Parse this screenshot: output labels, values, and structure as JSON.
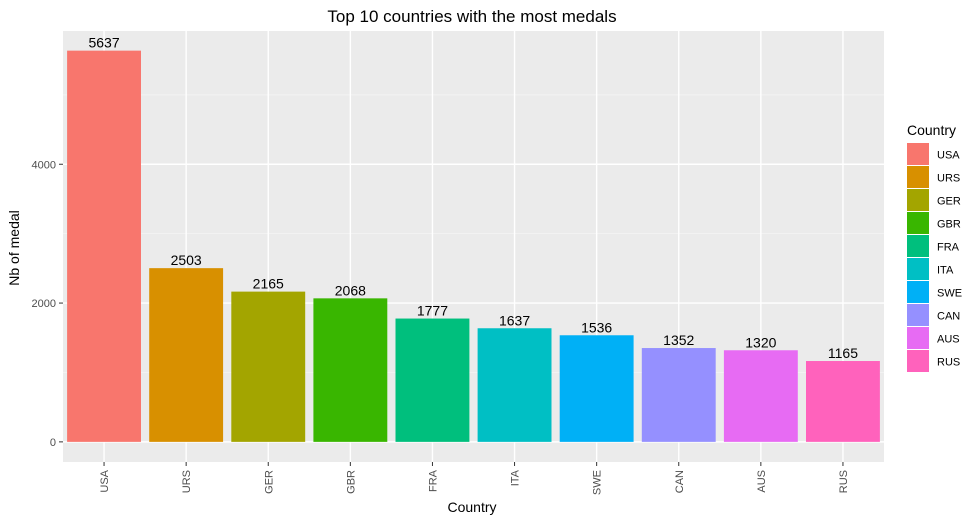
{
  "chart_data": {
    "type": "bar",
    "title": "Top 10 countries with the most medals",
    "xlabel": "Country",
    "ylabel": "Nb of medal",
    "categories": [
      "USA",
      "URS",
      "GER",
      "GBR",
      "FRA",
      "ITA",
      "SWE",
      "CAN",
      "AUS",
      "RUS"
    ],
    "values": [
      5637,
      2503,
      2165,
      2068,
      1777,
      1637,
      1536,
      1352,
      1320,
      1165
    ],
    "colors": [
      "#F8766D",
      "#D89000",
      "#A3A500",
      "#39B600",
      "#00BF7D",
      "#00BFC4",
      "#00B0F6",
      "#9590FF",
      "#E76BF3",
      "#FF62BC"
    ],
    "ylim": [
      -290,
      5920
    ],
    "yticks": [
      0,
      2000,
      4000
    ],
    "grid": true,
    "legend": {
      "title": "Country",
      "position": "right",
      "entries": [
        "USA",
        "URS",
        "GER",
        "GBR",
        "FRA",
        "ITA",
        "SWE",
        "CAN",
        "AUS",
        "RUS"
      ]
    }
  }
}
